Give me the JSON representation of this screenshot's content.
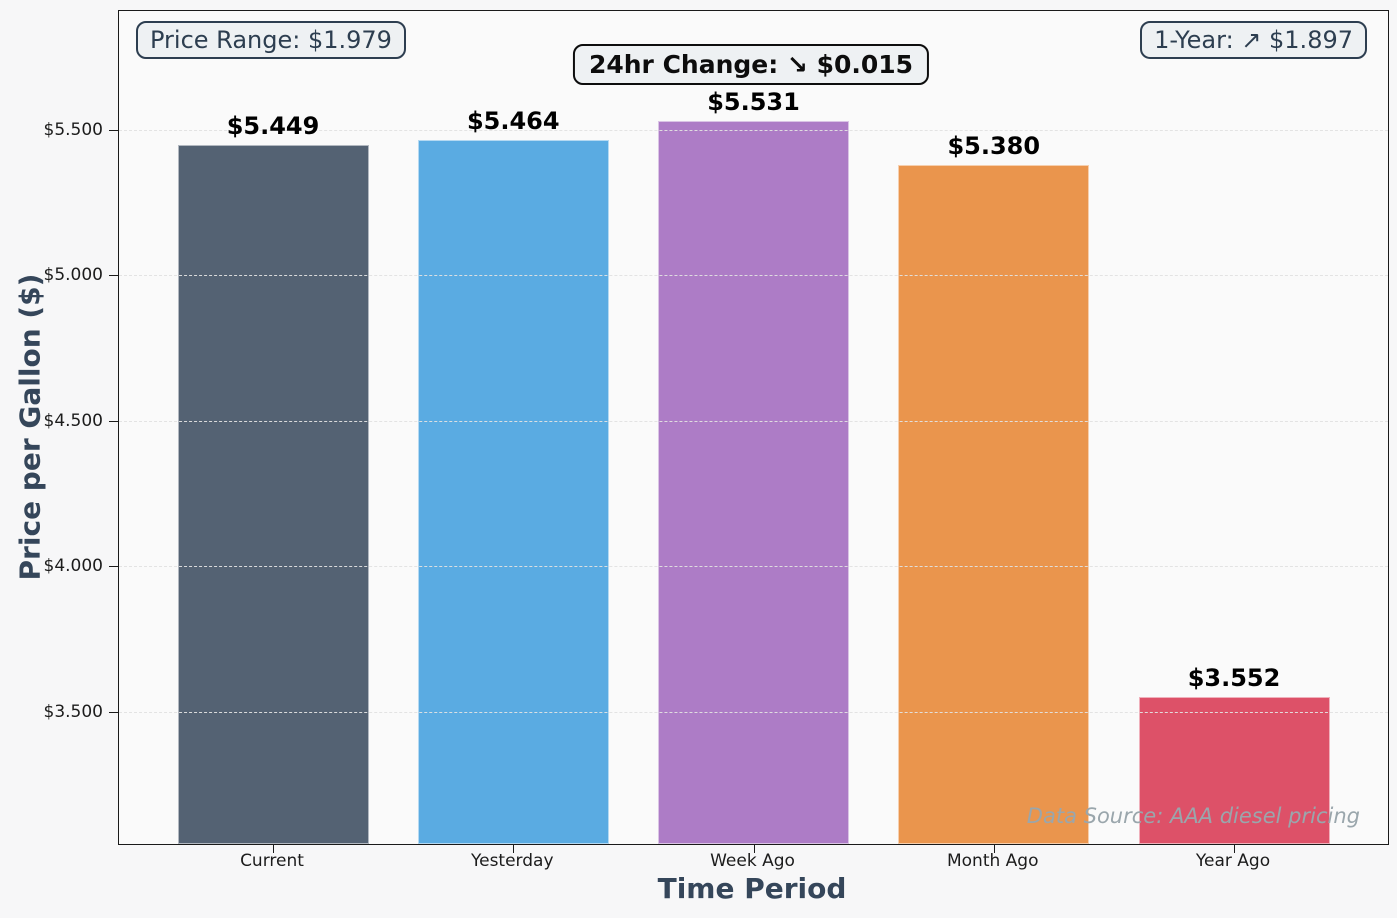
{
  "annotations": {
    "price_range": "Price Range: $1.979",
    "change_24hr": "24hr Change: ↘ $0.015",
    "one_year": "1-Year: ↗ $1.897",
    "data_source": "Data Source: AAA diesel pricing"
  },
  "chart_data": {
    "type": "bar",
    "title": "",
    "xlabel": "Time Period",
    "ylabel": "Price per Gallon ($)",
    "categories": [
      "Current",
      "Yesterday",
      "Week Ago",
      "Month Ago",
      "Year Ago"
    ],
    "values": [
      5.449,
      5.464,
      5.531,
      5.38,
      3.552
    ],
    "value_labels": [
      "$5.449",
      "$5.464",
      "$5.531",
      "$5.380",
      "$3.552"
    ],
    "bar_colors": [
      "#546273",
      "#5aabe2",
      "#ad7cc6",
      "#ea954d",
      "#dd5168"
    ],
    "yticks": [
      {
        "value": 5.5,
        "label": "$5.500"
      },
      {
        "value": 5.0,
        "label": "$5.000"
      },
      {
        "value": 4.5,
        "label": "$4.500"
      },
      {
        "value": 4.0,
        "label": "$4.000"
      },
      {
        "value": 3.5,
        "label": "$3.500"
      }
    ],
    "ylim": [
      3.046,
      5.909
    ],
    "grid": {
      "axis": "y",
      "style": "dashed"
    },
    "legend": "none"
  },
  "colors": {
    "axis_title_text": "#35465a",
    "annotation_bg": "#eef1f3",
    "annotation_border": "#2d3e50",
    "change_box_text": "#0d0d0d",
    "watermark_text": "#9aa6ac",
    "plot_bg": "#fafafa",
    "figure_bg": "#f7f7f8"
  }
}
